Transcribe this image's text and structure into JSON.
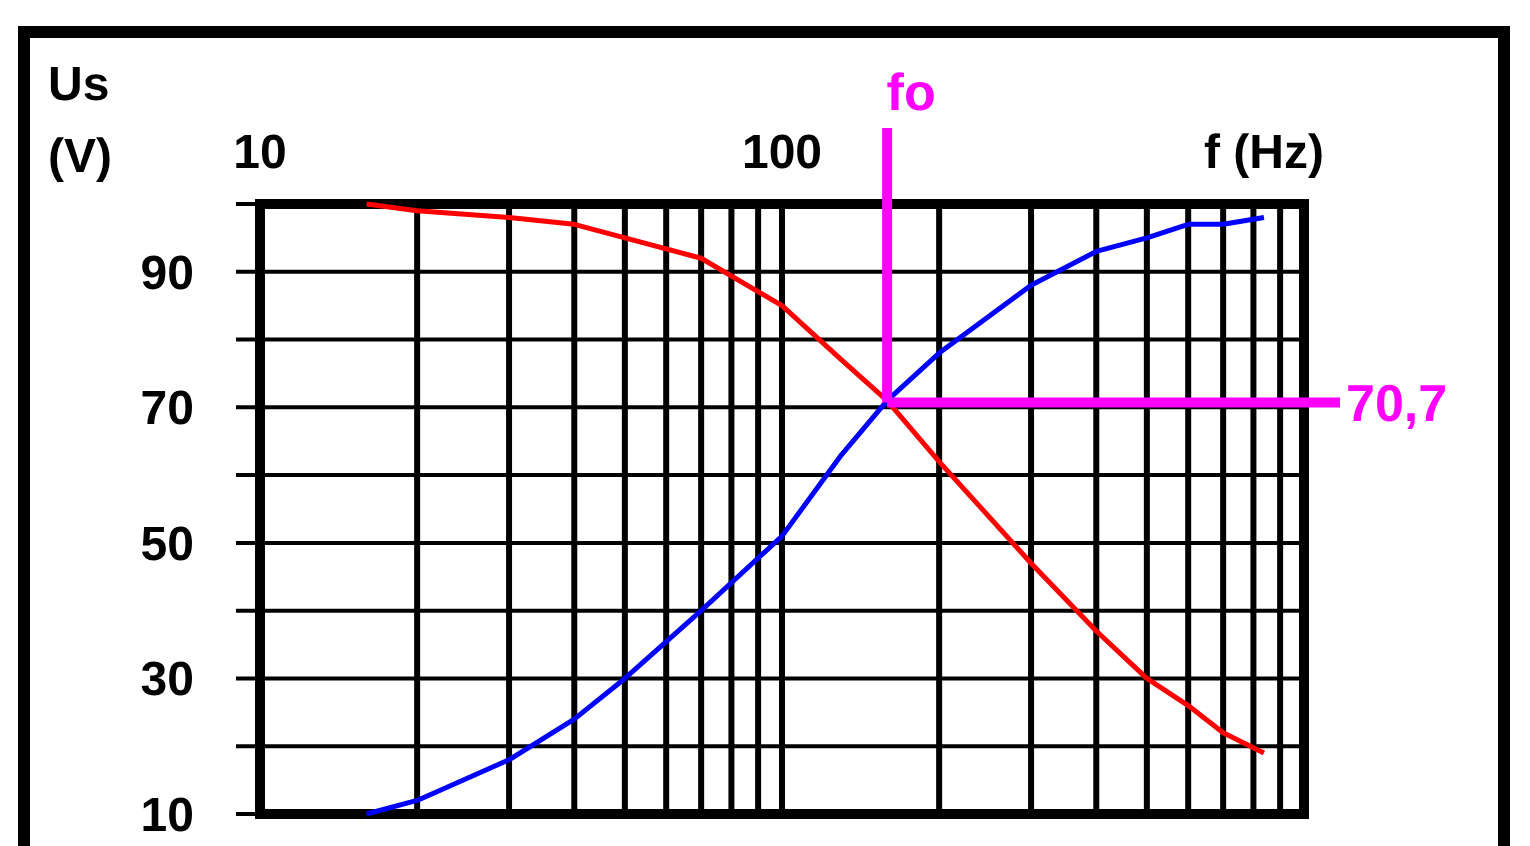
{
  "chart_data": {
    "type": "line",
    "xlabel": "f (Hz)",
    "ylabel": "Us (V)",
    "log": "x",
    "grid": true,
    "x": [
      16,
      20,
      30,
      40,
      50,
      70,
      100,
      130,
      159,
      200,
      300,
      400,
      500,
      600,
      700,
      838
    ],
    "series": [
      {
        "color": "#ff0000",
        "values": [
          100,
          99,
          98,
          97,
          95,
          92,
          85,
          77,
          71,
          62,
          47,
          37,
          30,
          26,
          22,
          19
        ]
      },
      {
        "color": "#0000ff",
        "values": [
          10,
          12,
          18,
          24,
          30,
          40,
          51,
          63,
          71,
          78,
          88,
          93,
          95,
          97,
          97,
          98
        ]
      }
    ],
    "xlim": [
      10,
      1000
    ],
    "xticks": [
      10,
      {
        "value": 20,
        "label": null
      },
      {
        "value": 30,
        "label": null
      },
      {
        "value": 40,
        "label": null
      },
      {
        "value": 50,
        "label": null
      },
      {
        "value": 60,
        "label": null
      },
      {
        "value": 70,
        "label": null
      },
      {
        "value": 80,
        "label": null
      },
      {
        "value": 90,
        "label": null
      },
      100,
      {
        "value": 200,
        "label": null
      },
      {
        "value": 300,
        "label": null
      },
      {
        "value": 400,
        "label": null
      },
      {
        "value": 500,
        "label": null
      },
      {
        "value": 600,
        "label": null
      },
      {
        "value": 700,
        "label": null
      },
      {
        "value": 800,
        "label": null
      },
      {
        "value": 900,
        "label": null
      },
      {
        "value": 1000,
        "label": null
      }
    ],
    "ylim": [
      10,
      100
    ],
    "yticks": [
      10,
      {
        "value": 20,
        "label": null
      },
      30,
      {
        "value": 40,
        "label": null
      },
      50,
      {
        "value": 60,
        "label": null
      },
      70,
      {
        "value": 80,
        "label": null
      },
      90,
      {
        "value": 100,
        "label": null
      }
    ],
    "ref_lines": [
      {
        "axis": "x",
        "value": 159,
        "label": "fo",
        "color": "#ff00ff"
      },
      {
        "axis": "y",
        "value": 70.7,
        "label": "70,7",
        "color": "#ff00ff"
      }
    ],
    "marker": "none",
    "line_style": "solid"
  }
}
